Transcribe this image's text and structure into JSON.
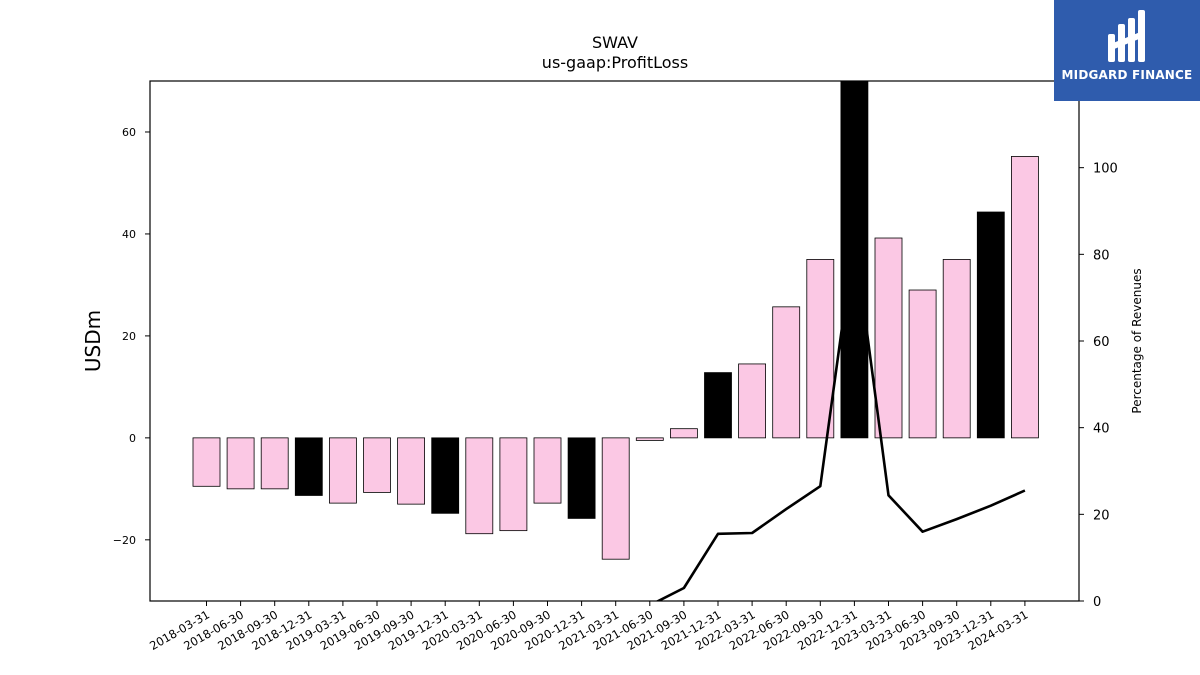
{
  "chart_data": {
    "type": "bar",
    "title": "SWAV",
    "subtitle": "us-gaap:ProfitLoss",
    "ylabel": "USDm",
    "ylabel_right": "Percentage of Revenues",
    "ylim": [
      -32,
      70
    ],
    "ylim_right": [
      0,
      120
    ],
    "yticks": [
      -20,
      0,
      20,
      40,
      60
    ],
    "yticks_right": [
      0,
      20,
      40,
      60,
      80,
      100
    ],
    "categories": [
      "2018-03-31",
      "2018-06-30",
      "2018-09-30",
      "2018-12-31",
      "2019-03-31",
      "2019-06-30",
      "2019-09-30",
      "2019-12-31",
      "2020-03-31",
      "2020-06-30",
      "2020-09-30",
      "2020-12-31",
      "2021-03-31",
      "2021-06-30",
      "2021-09-30",
      "2021-12-31",
      "2022-03-31",
      "2022-06-30",
      "2022-09-30",
      "2022-12-31",
      "2023-03-31",
      "2023-06-30",
      "2023-09-30",
      "2023-12-31",
      "2024-03-31"
    ],
    "series": [
      {
        "values": [
          -9.5,
          -10,
          -10,
          -11.3,
          -12.8,
          -10.7,
          -13,
          -14.8,
          -18.8,
          -18.2,
          -12.8,
          -15.8,
          -23.8,
          -0.5,
          1.8,
          12.8,
          14.5,
          25.7,
          35,
          70.5,
          39.2,
          29,
          35,
          44.3,
          55.2
        ],
        "colors": [
          "#fbc8e4",
          "#fbc8e4",
          "#fbc8e4",
          "#000000",
          "#fbc8e4",
          "#fbc8e4",
          "#fbc8e4",
          "#000000",
          "#fbc8e4",
          "#fbc8e4",
          "#fbc8e4",
          "#000000",
          "#fbc8e4",
          "#fbc8e4",
          "#fbc8e4",
          "#000000",
          "#fbc8e4",
          "#fbc8e4",
          "#fbc8e4",
          "#000000",
          "#fbc8e4",
          "#fbc8e4",
          "#fbc8e4",
          "#000000",
          "#fbc8e4"
        ]
      },
      {
        "axis": "right",
        "type": "line",
        "values": [
          null,
          null,
          null,
          null,
          null,
          null,
          null,
          null,
          null,
          null,
          null,
          null,
          -3,
          -1,
          3,
          15.5,
          15.7,
          21.2,
          26.5,
          84,
          24.4,
          16,
          18.9,
          22,
          25.5
        ],
        "color": "#000000"
      }
    ],
    "grid": false
  },
  "logo": {
    "text": "MIDGARD FINANCE",
    "bg": "#2f5cad"
  }
}
